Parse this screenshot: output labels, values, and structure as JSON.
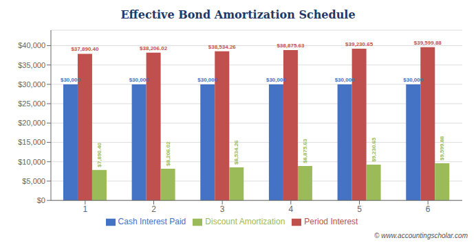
{
  "chart_data": {
    "type": "bar",
    "title": "Effective Bond Amortization Schedule",
    "categories": [
      "1",
      "2",
      "3",
      "4",
      "5",
      "6"
    ],
    "series": [
      {
        "name": "Cash Interest Paid",
        "color": "#4472C4",
        "values": [
          30000,
          30000,
          30000,
          30000,
          30000,
          30000
        ],
        "value_labels": [
          "$30,000",
          "$30,000",
          "$30,000",
          "$30,000",
          "$30,000",
          "$30,000"
        ]
      },
      {
        "name": "Period Interest",
        "color": "#C0504D",
        "values": [
          37890.4,
          38206.02,
          38534.26,
          38875.63,
          39230.65,
          39599.88
        ],
        "value_labels": [
          "$37,890.40",
          "$38,206.02",
          "$38,534.26",
          "$38,875.63",
          "$39,230.65",
          "$39,599.88"
        ]
      },
      {
        "name": "Discount Amortization",
        "color": "#9BBB59",
        "values": [
          7890.4,
          8206.02,
          8534.26,
          8875.63,
          9230.65,
          9599.88
        ],
        "value_labels": [
          "$7,890.40",
          "$8,206.02",
          "$8,534.26",
          "$8,875.63",
          "$9,230.65",
          "$9,599.88"
        ]
      }
    ],
    "ylim": [
      0,
      44000
    ],
    "yticks": [
      {
        "value": 0,
        "label": "$0"
      },
      {
        "value": 5000,
        "label": "$5,000"
      },
      {
        "value": 10000,
        "label": "$10,000"
      },
      {
        "value": 15000,
        "label": "$15,000"
      },
      {
        "value": 20000,
        "label": "$20,000"
      },
      {
        "value": 25000,
        "label": "$25,000"
      },
      {
        "value": 30000,
        "label": "$30,000"
      },
      {
        "value": 35000,
        "label": "$35,000"
      },
      {
        "value": 40000,
        "label": "$40,000"
      }
    ],
    "grid": true,
    "legend": "bottom",
    "data_labels": true,
    "annotations": [
      "© www.accountingscholar.com"
    ]
  }
}
